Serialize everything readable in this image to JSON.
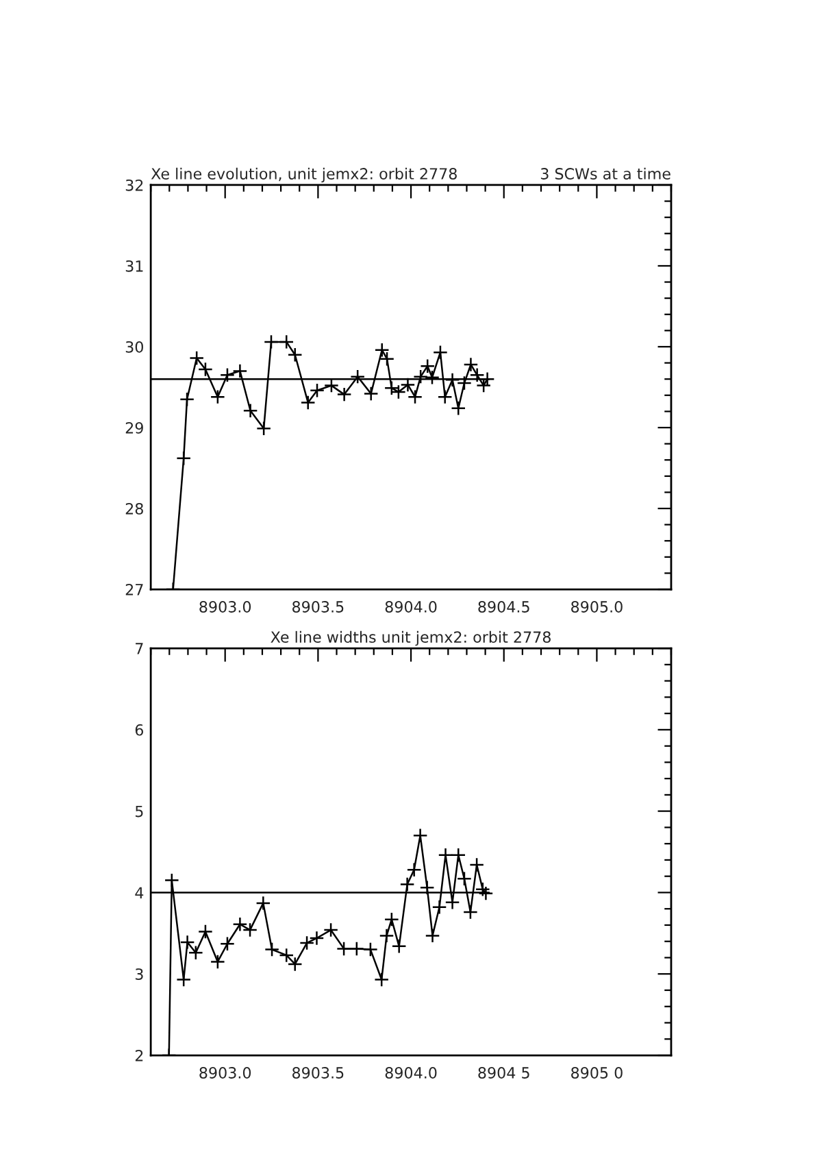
{
  "chart_data": [
    {
      "type": "line",
      "title": "Xe line evolution, unit jemx2: orbit 2778",
      "subtitle": "3 SCWs at a time",
      "marker": "cross",
      "xlim": [
        8902.6,
        8905.4
      ],
      "ylim": [
        27,
        32
      ],
      "xticks": [
        {
          "value": 8903.0,
          "label": "8903.0"
        },
        {
          "value": 8903.5,
          "label": "8903.5"
        },
        {
          "value": 8904.0,
          "label": "8904.0"
        },
        {
          "value": 8904.5,
          "label": "8904.5"
        },
        {
          "value": 8905.0,
          "label": "8905.0"
        }
      ],
      "yticks": [
        27,
        28,
        29,
        30,
        31,
        32
      ],
      "series": [
        {
          "color": "#000000",
          "x": [
            8902.72,
            8902.777,
            8902.795,
            8902.847,
            8902.894,
            8902.96,
            8903.012,
            8903.08,
            8903.136,
            8903.208,
            8903.248,
            8903.33,
            8903.376,
            8903.446,
            8903.495,
            8903.572,
            8903.641,
            8903.713,
            8903.785,
            8903.844,
            8903.871,
            8903.896,
            8903.933,
            8903.983,
            8904.022,
            8904.052,
            8904.089,
            8904.114,
            8904.158,
            8904.183,
            8904.223,
            8904.255,
            8904.287,
            8904.322,
            8904.356,
            8904.391,
            8904.411
          ],
          "values": [
            27,
            28.62,
            29.35,
            29.86,
            29.72,
            29.38,
            29.65,
            29.7,
            29.21,
            28.99,
            30.06,
            30.06,
            29.9,
            29.31,
            29.46,
            29.52,
            29.41,
            29.63,
            29.42,
            29.96,
            29.85,
            29.49,
            29.44,
            29.53,
            29.38,
            29.63,
            29.76,
            29.62,
            29.93,
            29.38,
            29.59,
            29.24,
            29.55,
            29.78,
            29.65,
            29.52,
            29.6
          ]
        },
        {
          "color": "#000000",
          "type": "line",
          "marker": "none",
          "x": [
            8902.6,
            8904.42
          ],
          "values": [
            29.6,
            29.6
          ]
        }
      ]
    },
    {
      "type": "line",
      "title": "Xe line widths unit jemx2: orbit 2778",
      "marker": "cross",
      "xlim": [
        8902.6,
        8905.4
      ],
      "ylim": [
        2,
        7
      ],
      "xticks": [
        {
          "value": 8903.0,
          "label": "8903.0"
        },
        {
          "value": 8903.5,
          "label": "8903.5"
        },
        {
          "value": 8904.0,
          "label": "8904.0"
        },
        {
          "value": 8904.5,
          "label": "8904 5"
        },
        {
          "value": 8905.0,
          "label": "8905 0"
        }
      ],
      "yticks": [
        2,
        3,
        4,
        5,
        6,
        7
      ],
      "series": [
        {
          "color": "#000000",
          "x": [
            8902.698,
            8902.713,
            8902.777,
            8902.797,
            8902.842,
            8902.894,
            8902.96,
            8903.012,
            8903.08,
            8903.134,
            8903.205,
            8903.252,
            8903.33,
            8903.376,
            8903.44,
            8903.493,
            8903.569,
            8903.639,
            8903.708,
            8903.782,
            8903.842,
            8903.869,
            8903.896,
            8903.936,
            8903.98,
            8904.017,
            8904.05,
            8904.087,
            8904.116,
            8904.153,
            8904.186,
            8904.223,
            8904.255,
            8904.287,
            8904.32,
            8904.354,
            8904.386,
            8904.403
          ],
          "values": [
            2,
            4.15,
            2.93,
            3.39,
            3.26,
            3.52,
            3.15,
            3.37,
            3.61,
            3.54,
            3.87,
            3.3,
            3.23,
            3.12,
            3.38,
            3.44,
            3.54,
            3.31,
            3.31,
            3.3,
            2.93,
            3.47,
            3.67,
            3.34,
            4.1,
            4.28,
            4.7,
            4.06,
            3.47,
            3.82,
            4.46,
            3.88,
            4.46,
            4.17,
            3.76,
            4.34,
            4.04,
            3.99
          ]
        },
        {
          "color": "#000000",
          "type": "line",
          "marker": "none",
          "x": [
            8902.6,
            8904.42
          ],
          "values": [
            4.0,
            4.0
          ]
        }
      ]
    }
  ]
}
